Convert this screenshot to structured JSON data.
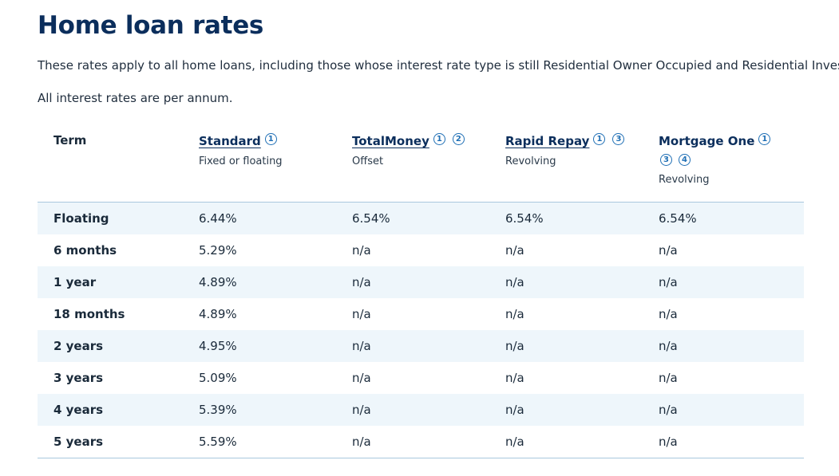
{
  "page": {
    "title": "Home loan rates",
    "intro": "These rates apply to all home loans, including those whose interest rate type is still Residential Owner Occupied and Residential Investor.",
    "annum_note": "All interest rates are per annum."
  },
  "table": {
    "term_header": "Term",
    "columns": [
      {
        "name": "Standard",
        "subtitle": "Fixed or floating",
        "footnotes": [
          "1"
        ]
      },
      {
        "name": "TotalMoney",
        "subtitle": "Offset",
        "footnotes": [
          "1",
          "2"
        ]
      },
      {
        "name": "Rapid Repay",
        "subtitle": "Revolving",
        "footnotes": [
          "1",
          "3"
        ]
      },
      {
        "name": "Mortgage One",
        "subtitle": "Revolving",
        "footnotes": [
          "1",
          "3",
          "4"
        ]
      }
    ],
    "rows": [
      {
        "term": "Floating",
        "rates": [
          "6.44%",
          "6.54%",
          "6.54%",
          "6.54%"
        ]
      },
      {
        "term": "6 months",
        "rates": [
          "5.29%",
          "n/a",
          "n/a",
          "n/a"
        ]
      },
      {
        "term": "1 year",
        "rates": [
          "4.89%",
          "n/a",
          "n/a",
          "n/a"
        ]
      },
      {
        "term": "18 months",
        "rates": [
          "4.89%",
          "n/a",
          "n/a",
          "n/a"
        ]
      },
      {
        "term": "2 years",
        "rates": [
          "4.95%",
          "n/a",
          "n/a",
          "n/a"
        ]
      },
      {
        "term": "3 years",
        "rates": [
          "5.09%",
          "n/a",
          "n/a",
          "n/a"
        ]
      },
      {
        "term": "4 years",
        "rates": [
          "5.39%",
          "n/a",
          "n/a",
          "n/a"
        ]
      },
      {
        "term": "5 years",
        "rates": [
          "5.59%",
          "n/a",
          "n/a",
          "n/a"
        ]
      }
    ]
  },
  "colors": {
    "heading": "#0b2e5c",
    "footnote": "#1f6fb5",
    "row_alt": "#eef6fb",
    "border": "#a9c7de"
  },
  "icons": {
    "footnote": "footnote-circle-icon"
  }
}
